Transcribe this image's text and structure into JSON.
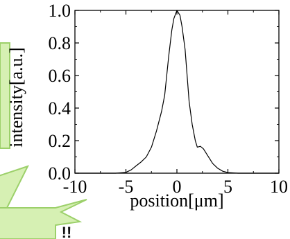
{
  "chart_data": {
    "type": "line",
    "xlabel": "position[μm]",
    "ylabel": "intensity[a.u.]",
    "xlim": [
      -10,
      10
    ],
    "ylim": [
      0,
      1.0
    ],
    "xticks": [
      "-10",
      "-5",
      "0",
      "5",
      "10"
    ],
    "yticks": [
      "0.0",
      "0.2",
      "0.4",
      "0.6",
      "0.8",
      "1.0"
    ],
    "grid": false,
    "series": [
      {
        "x": [
          -10,
          -6,
          -5,
          -4.5,
          -4,
          -3.5,
          -3,
          -2.5,
          -2,
          -1.5,
          -1.2,
          -1,
          -0.8,
          -0.5,
          -0.3,
          0,
          0.3,
          0.5,
          0.8,
          1,
          1.2,
          1.5,
          1.8,
          2,
          2.3,
          2.6,
          3,
          3.5,
          4,
          4.5,
          5,
          6,
          10
        ],
        "y": [
          0.0,
          0.0,
          0.005,
          0.02,
          0.045,
          0.07,
          0.1,
          0.16,
          0.26,
          0.38,
          0.48,
          0.6,
          0.72,
          0.88,
          0.95,
          1.0,
          0.97,
          0.9,
          0.76,
          0.6,
          0.44,
          0.3,
          0.2,
          0.16,
          0.165,
          0.15,
          0.11,
          0.06,
          0.03,
          0.012,
          0.004,
          0.0,
          0.0
        ]
      }
    ]
  },
  "callout": {
    "text": "!!",
    "fill_color": "#d6f0b3",
    "stroke_color": "#9cd06a"
  },
  "ylabel_box": {
    "fill_color": "#d6f0b3",
    "stroke_color": "#9cd06a"
  }
}
